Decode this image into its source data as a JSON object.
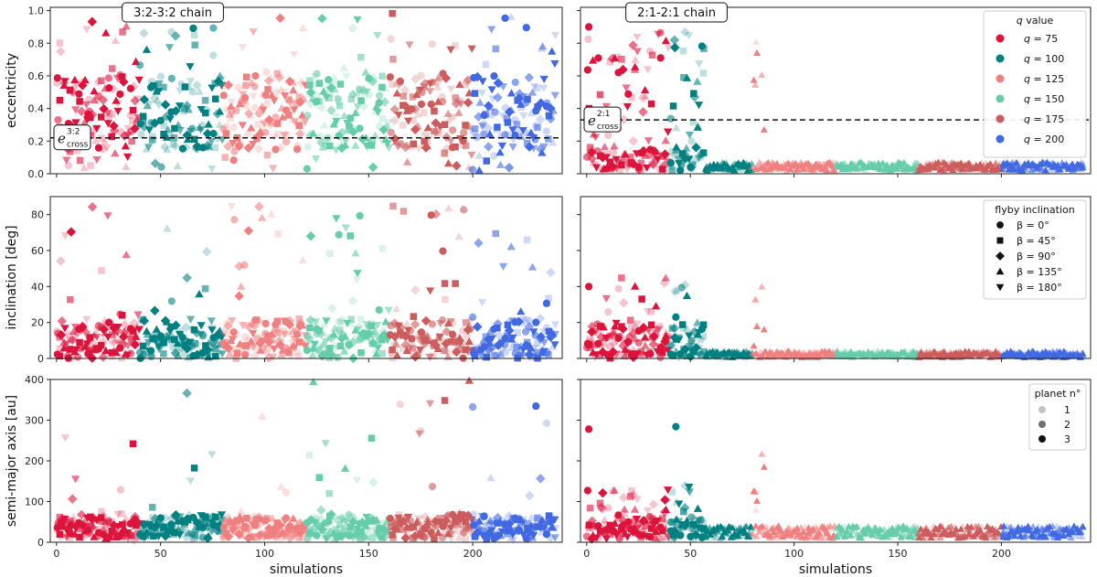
{
  "chart_data": {
    "type": "scatter",
    "description_rows": [
      "eccentricity",
      "inclination [deg]",
      "semi-major axis [au]"
    ],
    "xlabel": "simulations",
    "xlim": [
      -3,
      243
    ],
    "xticks": [
      0,
      50,
      100,
      150,
      200
    ],
    "panels": {
      "left_title": "3:2-3:2 chain",
      "right_title": "2:1-2:1 chain"
    },
    "rows": [
      {
        "ylabel": "eccentricity",
        "ylim": [
          0,
          1.02
        ],
        "yticks": [
          0.0,
          0.2,
          0.4,
          0.6,
          0.8,
          1.0
        ],
        "yticklabels": [
          "0.0",
          "0.2",
          "0.4",
          "0.6",
          "0.8",
          "1.0"
        ]
      },
      {
        "ylabel": "inclination [deg]",
        "ylim": [
          0,
          90
        ],
        "yticks": [
          0,
          20,
          40,
          60,
          80
        ],
        "yticklabels": [
          "0",
          "20",
          "40",
          "60",
          "80"
        ]
      },
      {
        "ylabel": "semi-major axis [au]",
        "ylim": [
          0,
          400
        ],
        "yticks": [
          0,
          100,
          200,
          300,
          400
        ],
        "yticklabels": [
          "0",
          "100",
          "200",
          "300",
          "400"
        ]
      }
    ],
    "crossing_lines": [
      {
        "panel": "left",
        "y": 0.22,
        "label_main": "e",
        "label_sup": "3:2",
        "label_sub": "cross"
      },
      {
        "panel": "right",
        "y": 0.33,
        "label_main": "e",
        "label_sup": "2:1",
        "label_sub": "cross"
      }
    ],
    "series": [
      {
        "name": "q = 75",
        "q": "75",
        "color": "#dc143c",
        "x_range": [
          0,
          40
        ]
      },
      {
        "name": "q = 100",
        "q": "100",
        "color": "#008080",
        "x_range": [
          40,
          80
        ]
      },
      {
        "name": "q = 125",
        "q": "125",
        "color": "#f08080",
        "x_range": [
          80,
          120
        ]
      },
      {
        "name": "q = 150",
        "q": "150",
        "color": "#66cdaa",
        "x_range": [
          120,
          160
        ]
      },
      {
        "name": "q = 175",
        "q": "175",
        "color": "#cd5c5c",
        "x_range": [
          160,
          200
        ]
      },
      {
        "name": "q = 200",
        "q": "200",
        "color": "#4169e1",
        "x_range": [
          200,
          240
        ]
      }
    ],
    "legend_q": {
      "title_q": "q",
      "title_rest": " value",
      "location": "top-right of top-right panel"
    },
    "legend_beta": {
      "title": "flyby inclination",
      "location": "top-right of middle-right panel",
      "entries": [
        {
          "label": "β = 0°",
          "marker": "circle"
        },
        {
          "label": "β = 45°",
          "marker": "square"
        },
        {
          "label": "β = 90°",
          "marker": "diamond"
        },
        {
          "label": "β = 135°",
          "marker": "triangle-up"
        },
        {
          "label": "β = 180°",
          "marker": "triangle-down"
        }
      ]
    },
    "legend_planet": {
      "title": "planet n°",
      "location": "top-right of bottom-right panel",
      "entries": [
        {
          "label": "1",
          "alpha": 0.25
        },
        {
          "label": "2",
          "alpha": 0.6
        },
        {
          "label": "3",
          "alpha": 1.0
        }
      ]
    },
    "marker_cycle": [
      "circle",
      "square",
      "diamond",
      "triangle-up",
      "triangle-down"
    ],
    "points_per_simulation": 3,
    "left_panel_profile": {
      "eccentricity": {
        "core_low": 0.15,
        "core_high": 0.6,
        "outlier_max": 1.0
      },
      "inclination": {
        "core_low": 0,
        "core_high": 22,
        "outlier_max": 85
      },
      "semi_major_axis": {
        "core_low": 5,
        "core_high": 70,
        "outlier_max": 400
      }
    },
    "right_panel_profile": {
      "unstable_range": [
        0,
        58
      ],
      "stable_value_ecc": [
        0.02,
        0.07
      ],
      "stable_value_inc": [
        0.5,
        4
      ],
      "stable_value_a": [
        10,
        40
      ]
    }
  }
}
